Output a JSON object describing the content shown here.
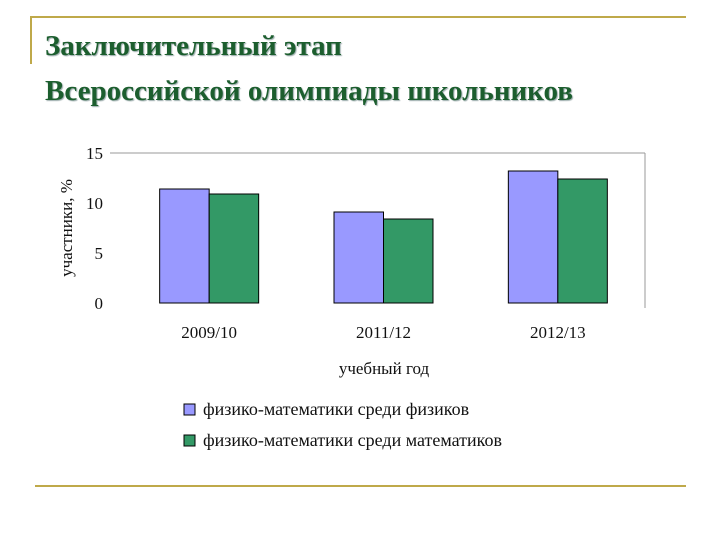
{
  "slide": {
    "title_line1": "Заключительный этап",
    "title_line2": "Всероссийской олимпиады школьников"
  },
  "chart_data": {
    "type": "bar",
    "title": "",
    "categories": [
      "2009/10",
      "2011/12",
      "2012/13"
    ],
    "series": [
      {
        "name": "физико-математики среди физиков",
        "color": "#9999ff",
        "values": [
          11.4,
          9.1,
          13.2
        ]
      },
      {
        "name": "физико-математики среди математиков",
        "color": "#339966",
        "values": [
          10.9,
          8.4,
          12.4
        ]
      }
    ],
    "xlabel": "учебный год",
    "ylabel": "участники, %",
    "ylim": [
      0,
      15
    ],
    "yticks": [
      "0",
      "5",
      "10",
      "15"
    ],
    "grid": false,
    "legend_position": "bottom"
  }
}
